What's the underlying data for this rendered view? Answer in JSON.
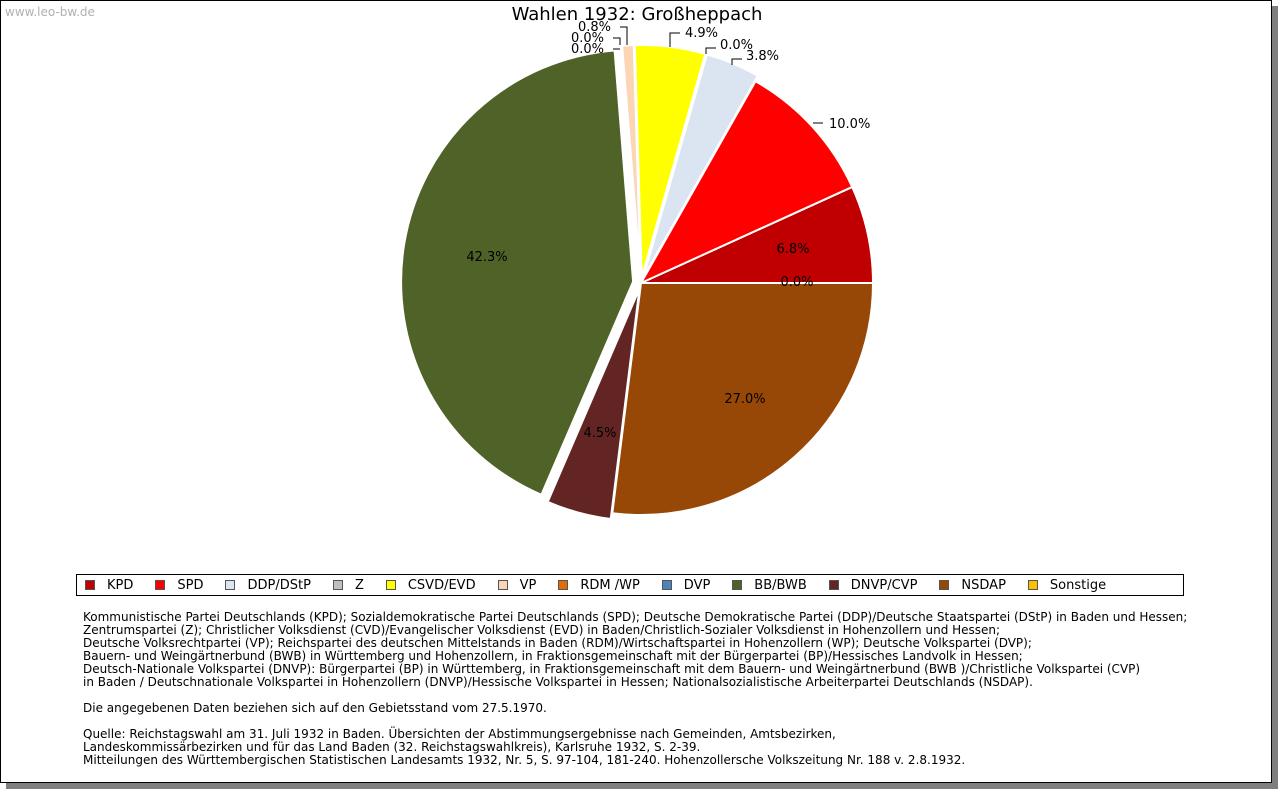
{
  "watermark": "www.leo-bw.de",
  "chart_data": {
    "type": "pie",
    "title": "Wahlen 1932: Großheppach",
    "slices": [
      {
        "name": "KPD",
        "value": 6.8,
        "label": "6.8%",
        "color": "#c00000"
      },
      {
        "name": "SPD",
        "value": 10.0,
        "label": "10.0%",
        "color": "#ff0000"
      },
      {
        "name": "DDP/DStP",
        "value": 3.8,
        "label": "3.8%",
        "color": "#dbe5f1"
      },
      {
        "name": "Z",
        "value": 0.0,
        "label": "0.0%",
        "color": "#bfbfbf"
      },
      {
        "name": "CSVD/EVD",
        "value": 4.9,
        "label": "4.9%",
        "color": "#ffff00"
      },
      {
        "name": "VP",
        "value": 0.8,
        "label": "0.8%",
        "color": "#fcd5b4"
      },
      {
        "name": "RDM /WP",
        "value": 0.0,
        "label": "0.0%",
        "color": "#e36c09"
      },
      {
        "name": "DVP",
        "value": 0.0,
        "label": "0.0%",
        "color": "#4f81bd"
      },
      {
        "name": "BB/BWB",
        "value": 42.3,
        "label": "42.3%",
        "color": "#4f6228"
      },
      {
        "name": "DNVP/CVP",
        "value": 4.5,
        "label": "4.5%",
        "color": "#632523"
      },
      {
        "name": "NSDAP",
        "value": 27.0,
        "label": "27.0%",
        "color": "#974806"
      },
      {
        "name": "Sonstige",
        "value": 0.0,
        "label": "0.0%",
        "color": "#ffc000"
      }
    ]
  },
  "notes": {
    "parties": [
      "Kommunistische Partei Deutschlands (KPD); Sozialdemokratische Partei Deutschlands (SPD); Deutsche Demokratische Partei (DDP)/Deutsche Staatspartei (DStP) in Baden und Hessen;",
      "Zentrumspartei (Z); Christlicher Volksdienst (CVD)/Evangelischer Volksdienst (EVD) in Baden/Christlich-Sozialer Volksdienst in Hohenzollern und Hessen;",
      "Deutsche Volksrechtpartei (VP); Reichspartei des deutschen Mittelstands in Baden (RDM)/Wirtschaftspartei in Hohenzollern (WP); Deutsche Volkspartei (DVP);",
      "Bauern- und Weingärtnerbund (BWB) in Württemberg und Hohenzollern, in Fraktionsgemeinschaft mit der Bürgerpartei (BP)/Hessisches Landvolk in Hessen;",
      "Deutsch-Nationale Volkspartei (DNVP): Bürgerpartei (BP) in Württemberg, in Fraktionsgemeinschaft mit dem Bauern- und Weingärtnerbund (BWB )/Christliche Volkspartei (CVP)",
      "in Baden / Deutschnationale Volkspartei in Hohenzollern (DNVP)/Hessische Volkspartei in Hessen; Nationalsozialistische Arbeiterpartei Deutschlands (NSDAP)."
    ],
    "territory": "Die angegebenen Daten beziehen sich auf den Gebietsstand vom 27.5.1970.",
    "source": [
      "Quelle: Reichstagswahl am 31. Juli 1932 in Baden. Übersichten der Abstimmungsergebnisse nach Gemeinden, Amtsbezirken,",
      "Landeskommissärbezirken und für das Land Baden (32. Reichstagswahlkreis), Karlsruhe 1932, S. 2-39.",
      "Mitteilungen des Württembergischen Statistischen Landesamts 1932, Nr. 5, S. 97-104, 181-240. Hohenzollersche Volkszeitung Nr. 188 v. 2.8.1932."
    ]
  }
}
